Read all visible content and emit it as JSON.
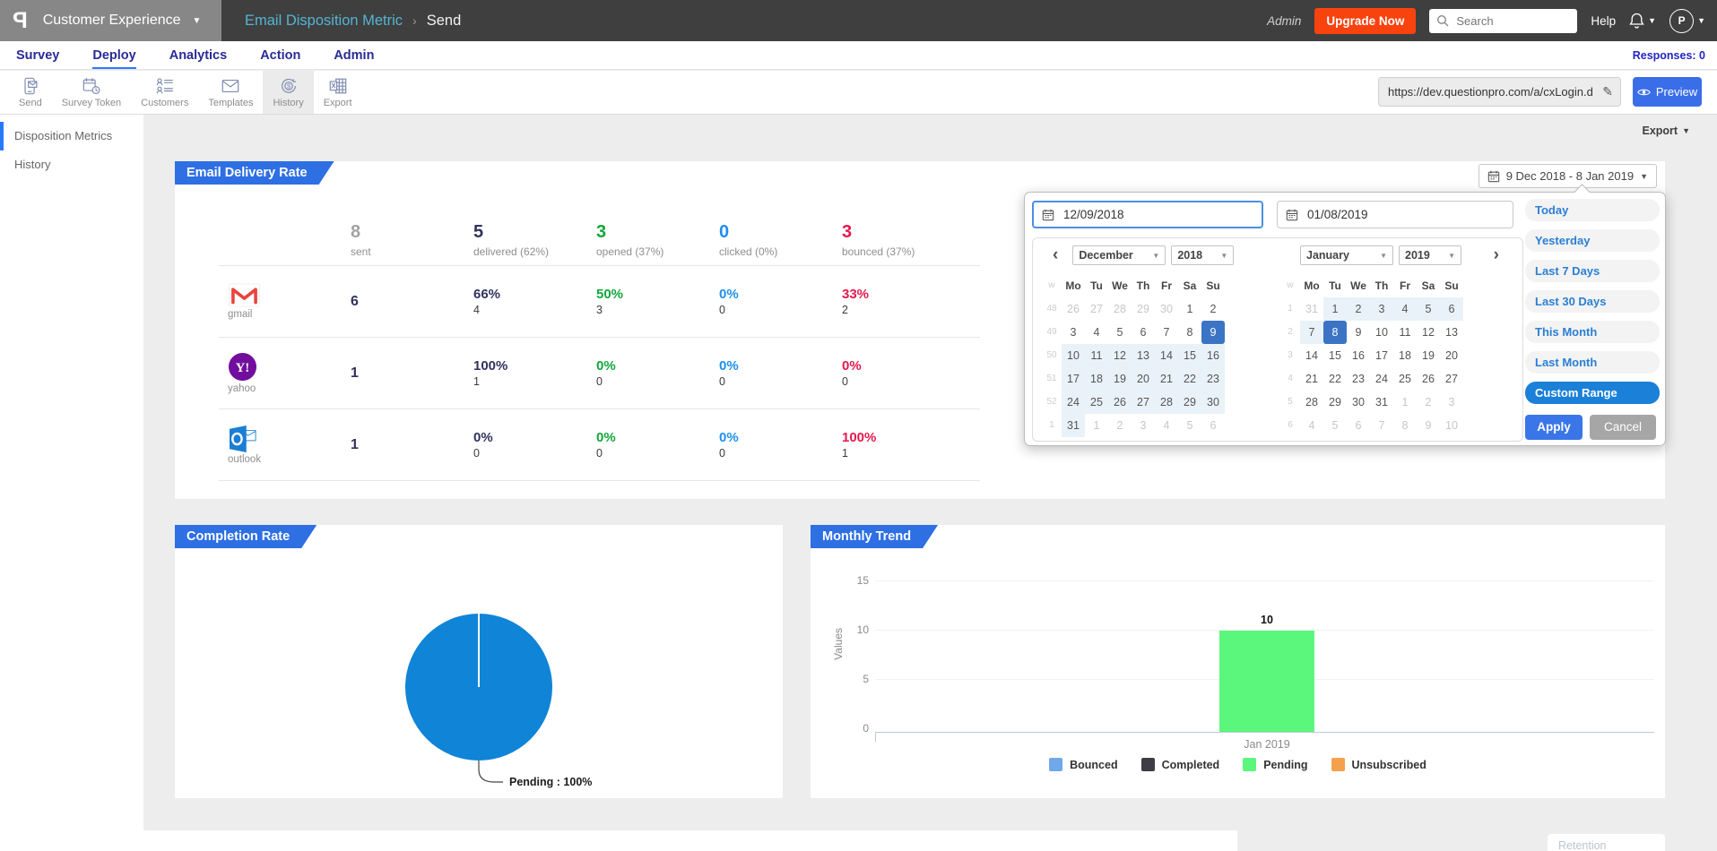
{
  "app": {
    "header": {
      "logo_letter": "P",
      "workspace_label": "Customer Experience",
      "breadcrumb_parent": "Email Disposition Metric",
      "breadcrumb_separator": "›",
      "breadcrumb_current": "Send",
      "admin_label": "Admin",
      "upgrade_label": "Upgrade Now",
      "search_placeholder": "Search",
      "help_label": "Help",
      "avatar_initial": "P"
    },
    "nav": {
      "items": [
        {
          "label": "Survey",
          "active": false
        },
        {
          "label": "Deploy",
          "active": true
        },
        {
          "label": "Analytics",
          "active": false
        },
        {
          "label": "Action",
          "active": false
        },
        {
          "label": "Admin",
          "active": false
        }
      ],
      "responses_label": "Responses: 0"
    },
    "toolbar": {
      "buttons": [
        {
          "label": "Send",
          "icon": "phone-send-icon",
          "active": false
        },
        {
          "label": "Survey Token",
          "icon": "calendar-token-icon",
          "active": false
        },
        {
          "label": "Customers",
          "icon": "customers-list-icon",
          "active": false
        },
        {
          "label": "Templates",
          "icon": "envelope-icon",
          "active": false
        },
        {
          "label": "History",
          "icon": "history-coin-icon",
          "active": true
        },
        {
          "label": "Export",
          "icon": "excel-icon",
          "active": false
        }
      ],
      "url_value": "https://dev.questionpro.com/a/cxLogin.d",
      "preview_label": "Preview"
    },
    "sidebar": {
      "items": [
        {
          "label": "Disposition Metrics",
          "active": true
        },
        {
          "label": "History",
          "active": false
        }
      ]
    },
    "page": {
      "export_label": "Export"
    }
  },
  "delivery_card": {
    "title": "Email Delivery Rate",
    "date_range_label": "9 Dec 2018 - 8 Jan 2019",
    "summary": [
      {
        "value": "8",
        "label": "sent",
        "color": "#a3a3a3"
      },
      {
        "value": "5",
        "label": "delivered (62%)",
        "color": "#32325e"
      },
      {
        "value": "3",
        "label": "opened (37%)",
        "color": "#12a63b"
      },
      {
        "value": "0",
        "label": "clicked (0%)",
        "color": "#1e90f0"
      },
      {
        "value": "3",
        "label": "bounced (37%)",
        "color": "#e5194e"
      }
    ],
    "metric_colors": [
      "#32325e",
      "#12a63b",
      "#1e90f0",
      "#e5194e"
    ],
    "rows": [
      {
        "provider": "gmail",
        "sent": "6",
        "metrics": [
          {
            "pct": "66%",
            "count": "4"
          },
          {
            "pct": "50%",
            "count": "3"
          },
          {
            "pct": "0%",
            "count": "0"
          },
          {
            "pct": "33%",
            "count": "2"
          }
        ]
      },
      {
        "provider": "yahoo",
        "sent": "1",
        "metrics": [
          {
            "pct": "100%",
            "count": "1"
          },
          {
            "pct": "0%",
            "count": "0"
          },
          {
            "pct": "0%",
            "count": "0"
          },
          {
            "pct": "0%",
            "count": "0"
          }
        ]
      },
      {
        "provider": "outlook",
        "sent": "1",
        "metrics": [
          {
            "pct": "0%",
            "count": "0"
          },
          {
            "pct": "0%",
            "count": "0"
          },
          {
            "pct": "0%",
            "count": "0"
          },
          {
            "pct": "100%",
            "count": "1"
          }
        ]
      }
    ]
  },
  "date_picker": {
    "start_value": "12/09/2018",
    "end_value": "01/08/2019",
    "week_col_label": "w",
    "day_headers": [
      "Mo",
      "Tu",
      "We",
      "Th",
      "Fr",
      "Sa",
      "Su"
    ],
    "calendars": [
      {
        "month": "December",
        "year": "2018",
        "weeks": [
          {
            "num": "48",
            "days": [
              {
                "d": "26",
                "s": "muted"
              },
              {
                "d": "27",
                "s": "muted"
              },
              {
                "d": "28",
                "s": "muted"
              },
              {
                "d": "29",
                "s": "muted"
              },
              {
                "d": "30",
                "s": "muted"
              },
              {
                "d": "1"
              },
              {
                "d": "2"
              }
            ]
          },
          {
            "num": "49",
            "days": [
              {
                "d": "3"
              },
              {
                "d": "4"
              },
              {
                "d": "5"
              },
              {
                "d": "6"
              },
              {
                "d": "7"
              },
              {
                "d": "8"
              },
              {
                "d": "9",
                "s": "selected"
              }
            ]
          },
          {
            "num": "50",
            "days": [
              {
                "d": "10",
                "s": "range"
              },
              {
                "d": "11",
                "s": "range"
              },
              {
                "d": "12",
                "s": "range"
              },
              {
                "d": "13",
                "s": "range"
              },
              {
                "d": "14",
                "s": "range"
              },
              {
                "d": "15",
                "s": "range"
              },
              {
                "d": "16",
                "s": "range"
              }
            ]
          },
          {
            "num": "51",
            "days": [
              {
                "d": "17",
                "s": "range"
              },
              {
                "d": "18",
                "s": "range"
              },
              {
                "d": "19",
                "s": "range"
              },
              {
                "d": "20",
                "s": "range"
              },
              {
                "d": "21",
                "s": "range"
              },
              {
                "d": "22",
                "s": "range"
              },
              {
                "d": "23",
                "s": "range"
              }
            ]
          },
          {
            "num": "52",
            "days": [
              {
                "d": "24",
                "s": "range"
              },
              {
                "d": "25",
                "s": "range"
              },
              {
                "d": "26",
                "s": "range"
              },
              {
                "d": "27",
                "s": "range"
              },
              {
                "d": "28",
                "s": "range"
              },
              {
                "d": "29",
                "s": "range"
              },
              {
                "d": "30",
                "s": "range"
              }
            ]
          },
          {
            "num": "1",
            "days": [
              {
                "d": "31",
                "s": "range"
              },
              {
                "d": "1",
                "s": "muted"
              },
              {
                "d": "2",
                "s": "muted"
              },
              {
                "d": "3",
                "s": "muted"
              },
              {
                "d": "4",
                "s": "muted"
              },
              {
                "d": "5",
                "s": "muted"
              },
              {
                "d": "6",
                "s": "muted"
              }
            ]
          }
        ]
      },
      {
        "month": "January",
        "year": "2019",
        "weeks": [
          {
            "num": "1",
            "days": [
              {
                "d": "31",
                "s": "muted"
              },
              {
                "d": "1",
                "s": "range"
              },
              {
                "d": "2",
                "s": "range"
              },
              {
                "d": "3",
                "s": "range"
              },
              {
                "d": "4",
                "s": "range"
              },
              {
                "d": "5",
                "s": "range"
              },
              {
                "d": "6",
                "s": "range"
              }
            ]
          },
          {
            "num": "2",
            "days": [
              {
                "d": "7",
                "s": "range"
              },
              {
                "d": "8",
                "s": "selected"
              },
              {
                "d": "9"
              },
              {
                "d": "10"
              },
              {
                "d": "11"
              },
              {
                "d": "12"
              },
              {
                "d": "13"
              }
            ]
          },
          {
            "num": "3",
            "days": [
              {
                "d": "14"
              },
              {
                "d": "15"
              },
              {
                "d": "16"
              },
              {
                "d": "17"
              },
              {
                "d": "18"
              },
              {
                "d": "19"
              },
              {
                "d": "20"
              }
            ]
          },
          {
            "num": "4",
            "days": [
              {
                "d": "21"
              },
              {
                "d": "22"
              },
              {
                "d": "23"
              },
              {
                "d": "24"
              },
              {
                "d": "25"
              },
              {
                "d": "26"
              },
              {
                "d": "27"
              }
            ]
          },
          {
            "num": "5",
            "days": [
              {
                "d": "28"
              },
              {
                "d": "29"
              },
              {
                "d": "30"
              },
              {
                "d": "31"
              },
              {
                "d": "1",
                "s": "muted"
              },
              {
                "d": "2",
                "s": "muted"
              },
              {
                "d": "3",
                "s": "muted"
              }
            ]
          },
          {
            "num": "6",
            "days": [
              {
                "d": "4",
                "s": "muted"
              },
              {
                "d": "5",
                "s": "muted"
              },
              {
                "d": "6",
                "s": "muted"
              },
              {
                "d": "7",
                "s": "muted"
              },
              {
                "d": "8",
                "s": "muted"
              },
              {
                "d": "9",
                "s": "muted"
              },
              {
                "d": "10",
                "s": "muted"
              }
            ]
          }
        ]
      }
    ],
    "quick_options": [
      "Today",
      "Yesterday",
      "Last 7 Days",
      "Last 30 Days",
      "This Month",
      "Last Month"
    ],
    "custom_range_label": "Custom Range",
    "apply_label": "Apply",
    "cancel_label": "Cancel"
  },
  "completion_card": {
    "title": "Completion Rate",
    "slice_label": "Pending : 100%",
    "pie_color": "#1084d6"
  },
  "trend_card": {
    "title": "Monthly Trend",
    "ylabel": "Values",
    "yticks": [
      "15",
      "10",
      "5",
      "0"
    ],
    "category": "Jan 2019",
    "bar_value": "10",
    "bar_color": "#5bf77d",
    "legend": [
      {
        "label": "Bounced",
        "color": "#6fa9ea"
      },
      {
        "label": "Completed",
        "color": "#3d3d46"
      },
      {
        "label": "Pending",
        "color": "#5bf77d"
      },
      {
        "label": "Unsubscribed",
        "color": "#f5a14c"
      }
    ]
  },
  "footer": {
    "partial_label": "Retention"
  },
  "chart_data": [
    {
      "type": "pie",
      "title": "Completion Rate",
      "labels": [
        "Pending"
      ],
      "values": [
        100
      ],
      "colors": [
        "#1084d6"
      ],
      "annotation": "Pending : 100%"
    },
    {
      "type": "bar",
      "title": "Monthly Trend",
      "categories": [
        "Jan 2019"
      ],
      "series": [
        {
          "name": "Pending",
          "values": [
            10
          ],
          "color": "#5bf77d"
        }
      ],
      "ylabel": "Values",
      "ylim": [
        0,
        15
      ],
      "yticks": [
        0,
        5,
        10,
        15
      ],
      "legend": [
        "Bounced",
        "Completed",
        "Pending",
        "Unsubscribed"
      ],
      "legend_position": "bottom",
      "grid": true
    }
  ]
}
